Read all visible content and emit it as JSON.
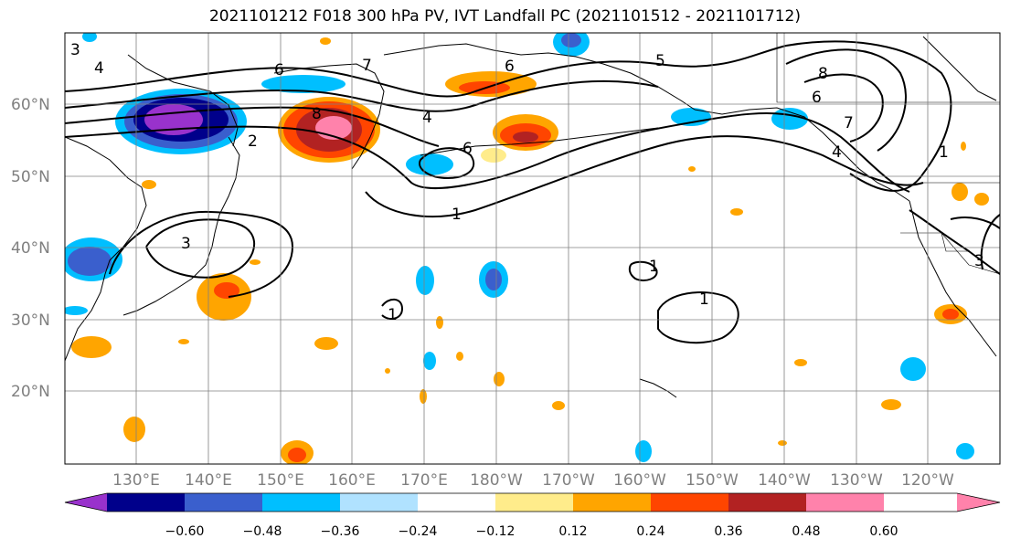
{
  "title": "2021101212 F018 300 hPa PV, IVT Landfall PC (2021101512 - 2021101712)",
  "lat_labels": [
    "60°N",
    "50°N",
    "40°N",
    "30°N",
    "20°N"
  ],
  "lon_labels": [
    "130°E",
    "140°E",
    "150°E",
    "160°E",
    "170°E",
    "180°W",
    "170°W",
    "160°W",
    "150°W",
    "140°W",
    "130°W",
    "120°W"
  ],
  "contour_labels": [
    "4",
    "6",
    "7",
    "8",
    "5",
    "6",
    "8",
    "7",
    "6",
    "4",
    "2",
    "1",
    "6",
    "3",
    "3",
    "1",
    "1",
    "1",
    "1",
    "3",
    "4"
  ],
  "colorbar": {
    "ticks": [
      "−0.60",
      "−0.48",
      "−0.36",
      "−0.24",
      "−0.12",
      "0.12",
      "0.24",
      "0.36",
      "0.48",
      "0.60"
    ],
    "colors": [
      "#9932cc",
      "#00008b",
      "#3a5fcd",
      "#00bfff",
      "#b0e2ff",
      "#ffffff",
      "#ffec8b",
      "#ffa500",
      "#ff4500",
      "#b22222",
      "#ff82ab"
    ]
  }
}
